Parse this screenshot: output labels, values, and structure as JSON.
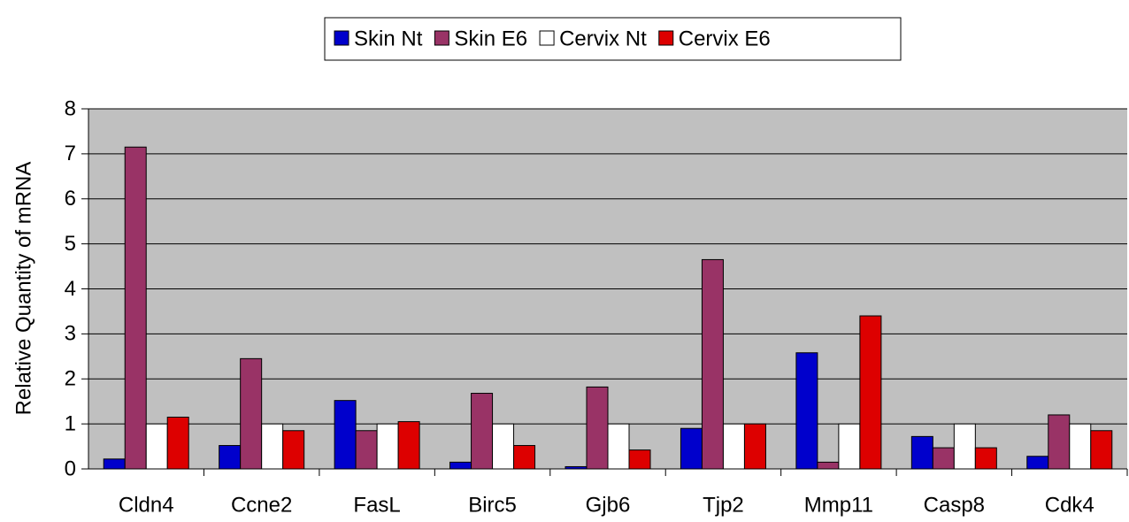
{
  "chart_data": {
    "type": "bar",
    "y_label": "Relative Quantity of mRNA",
    "categories": [
      "Cldn4",
      "Ccne2",
      "FasL",
      "Birc5",
      "Gjb6",
      "Tjp2",
      "Mmp11",
      "Casp8",
      "Cdk4"
    ],
    "series": [
      {
        "name": "Skin Nt",
        "color": "#0000cc",
        "values": [
          0.22,
          0.52,
          1.52,
          0.15,
          0.05,
          0.9,
          2.58,
          0.72,
          0.28
        ]
      },
      {
        "name": "Skin E6",
        "color": "#993366",
        "values": [
          7.15,
          2.45,
          0.85,
          1.68,
          1.82,
          4.65,
          0.15,
          0.47,
          1.2
        ]
      },
      {
        "name": "Cervix Nt",
        "color": "#ffffff",
        "values": [
          1,
          1,
          1,
          1,
          1,
          1,
          1,
          1,
          1
        ]
      },
      {
        "name": "Cervix E6",
        "color": "#dd0000",
        "values": [
          1.15,
          0.85,
          1.05,
          0.52,
          0.42,
          1,
          3.4,
          0.47,
          0.85
        ]
      }
    ],
    "ylim": [
      0,
      8
    ],
    "yticks": [
      0,
      1,
      2,
      3,
      4,
      5,
      6,
      7,
      8
    ],
    "grid": true,
    "legend": "top",
    "plot_background": "#c0c0c0"
  }
}
